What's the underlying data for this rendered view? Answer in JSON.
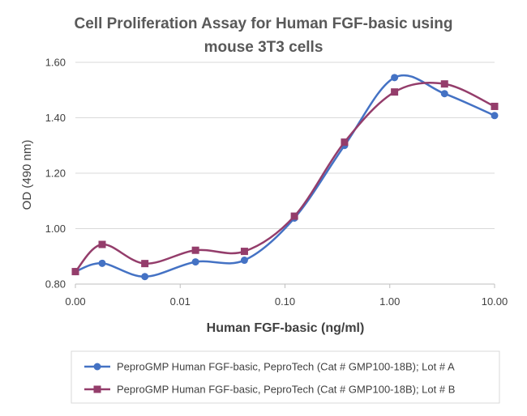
{
  "chart_data": {
    "type": "line",
    "title_lines": [
      "Cell Proliferation Assay for Human FGF-basic using",
      "mouse 3T3 cells"
    ],
    "xlabel": "Human FGF-basic (ng/ml)",
    "ylabel": "OD (490 nm)",
    "x_scale": "log",
    "x_tick_labels": [
      "0.00",
      "0.01",
      "0.10",
      "1.00",
      "10.00"
    ],
    "x_tick_values": [
      0.001,
      0.01,
      0.1,
      1,
      10
    ],
    "xlim": [
      0.001,
      10
    ],
    "ylim": [
      0.8,
      1.6
    ],
    "y_ticks": [
      0.8,
      1.0,
      1.2,
      1.4,
      1.6
    ],
    "y_tick_labels": [
      "0.80",
      "1.00",
      "1.20",
      "1.40",
      "1.60"
    ],
    "grid": "horizontal",
    "smoothed": true,
    "x": [
      0.001,
      0.0018,
      0.0046,
      0.014,
      0.041,
      0.123,
      0.37,
      1.11,
      3.33,
      10
    ],
    "series": [
      {
        "name": "PeproGMP Human FGF-basic, PeproTech (Cat # GMP100-18B); Lot # A",
        "color": "#4472C4",
        "marker": "circle",
        "values": [
          0.845,
          0.875,
          0.827,
          0.88,
          0.886,
          1.038,
          1.3,
          1.545,
          1.487,
          1.408
        ]
      },
      {
        "name": "PeproGMP Human FGF-basic, PeproTech (Cat # GMP100-18B); Lot # B",
        "color": "#943D6B",
        "marker": "square",
        "values": [
          0.845,
          0.943,
          0.874,
          0.922,
          0.918,
          1.045,
          1.312,
          1.493,
          1.522,
          1.441
        ]
      }
    ],
    "legend_position": "bottom"
  }
}
